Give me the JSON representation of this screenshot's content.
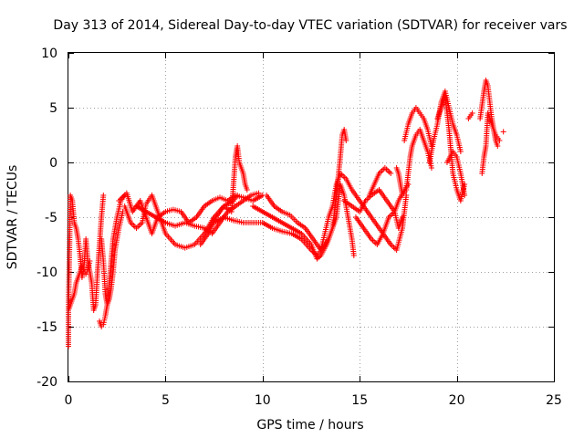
{
  "chart_data": {
    "type": "scatter",
    "title": "Day 313 of 2014, Sidereal Day-to-day VTEC variation (SDTVAR) for receiver vars",
    "xlabel": "GPS time / hours",
    "ylabel": "SDTVAR / TECUs",
    "xlim": [
      0,
      25
    ],
    "ylim": [
      -20,
      10
    ],
    "xticks": [
      0,
      5,
      10,
      15,
      20,
      25
    ],
    "yticks": [
      -20,
      -15,
      -10,
      -5,
      0,
      5,
      10
    ],
    "xtick_labels": [
      "0",
      "5",
      "10",
      "15",
      "20",
      "25"
    ],
    "ytick_labels": [
      "-20",
      "-15",
      "-10",
      "-5",
      "0",
      "5",
      "10"
    ],
    "grid": true,
    "marker": "+",
    "color": "#ff0000",
    "segments": [
      [
        [
          0.0,
          -16.8
        ],
        [
          0.0,
          -13.5
        ],
        [
          0.1,
          -3.0
        ],
        [
          0.2,
          -3.5
        ],
        [
          0.3,
          -5.5
        ],
        [
          0.4,
          -6.0
        ],
        [
          0.5,
          -7.0
        ],
        [
          0.6,
          -8.5
        ],
        [
          0.7,
          -10.5
        ],
        [
          0.8,
          -9.5
        ],
        [
          0.9,
          -7.0
        ],
        [
          1.0,
          -9.0
        ],
        [
          1.1,
          -10.0
        ],
        [
          1.2,
          -11.0
        ],
        [
          1.3,
          -13.5
        ],
        [
          1.4,
          -13.0
        ],
        [
          1.5,
          -10.0
        ],
        [
          1.6,
          -7.5
        ],
        [
          1.7,
          -5.0
        ],
        [
          1.8,
          -3.0
        ]
      ],
      [
        [
          0.0,
          -13.5
        ],
        [
          0.1,
          -13.0
        ],
        [
          0.2,
          -12.5
        ],
        [
          0.3,
          -12.0
        ],
        [
          0.4,
          -11.0
        ],
        [
          0.5,
          -10.5
        ],
        [
          0.6,
          -10.0
        ],
        [
          0.7,
          -9.5
        ],
        [
          0.8,
          -9.8
        ],
        [
          0.9,
          -10.2
        ],
        [
          1.0,
          -9.8
        ],
        [
          1.1,
          -9.0
        ]
      ],
      [
        [
          1.6,
          -14.5
        ],
        [
          1.7,
          -15.0
        ],
        [
          1.8,
          -14.8
        ],
        [
          1.9,
          -14.0
        ],
        [
          2.0,
          -13.0
        ],
        [
          2.1,
          -11.0
        ],
        [
          2.2,
          -9.0
        ],
        [
          2.3,
          -7.0
        ],
        [
          2.5,
          -5.0
        ],
        [
          2.7,
          -3.5
        ],
        [
          2.9,
          -3.0
        ]
      ],
      [
        [
          1.7,
          -7.0
        ],
        [
          1.8,
          -9.0
        ],
        [
          1.9,
          -12.0
        ],
        [
          2.0,
          -13.0
        ],
        [
          2.1,
          -12.5
        ],
        [
          2.2,
          -11.5
        ],
        [
          2.3,
          -10.0
        ],
        [
          2.4,
          -8.0
        ],
        [
          2.6,
          -6.0
        ],
        [
          2.8,
          -4.5
        ]
      ],
      [
        [
          2.9,
          -4.0
        ],
        [
          3.2,
          -5.5
        ],
        [
          3.5,
          -6.0
        ],
        [
          3.8,
          -5.5
        ],
        [
          4.0,
          -3.8
        ],
        [
          4.3,
          -3.0
        ],
        [
          4.6,
          -4.5
        ],
        [
          5.0,
          -6.5
        ],
        [
          5.5,
          -7.5
        ],
        [
          6.0,
          -7.8
        ],
        [
          6.5,
          -7.5
        ],
        [
          7.0,
          -6.5
        ],
        [
          7.5,
          -5.0
        ],
        [
          8.0,
          -4.0
        ],
        [
          8.5,
          -3.5
        ],
        [
          8.7,
          -3.0
        ]
      ],
      [
        [
          2.6,
          -3.5
        ],
        [
          3.0,
          -2.8
        ],
        [
          3.3,
          -4.5
        ],
        [
          3.7,
          -3.5
        ],
        [
          4.0,
          -5.0
        ],
        [
          4.3,
          -6.5
        ],
        [
          4.6,
          -5.0
        ],
        [
          5.0,
          -4.5
        ],
        [
          5.4,
          -4.3
        ],
        [
          5.8,
          -4.5
        ],
        [
          6.2,
          -5.5
        ],
        [
          6.6,
          -5.0
        ],
        [
          7.0,
          -4.0
        ],
        [
          7.4,
          -3.5
        ],
        [
          7.8,
          -3.2
        ],
        [
          8.2,
          -3.5
        ],
        [
          8.6,
          -3.0
        ],
        [
          9.0,
          -3.2
        ],
        [
          9.5,
          -3.5
        ],
        [
          10.0,
          -3.0
        ]
      ],
      [
        [
          3.5,
          -4.0
        ],
        [
          4.0,
          -4.5
        ],
        [
          4.5,
          -5.0
        ],
        [
          5.0,
          -5.5
        ],
        [
          5.5,
          -5.8
        ],
        [
          6.0,
          -5.5
        ],
        [
          6.5,
          -5.8
        ],
        [
          7.0,
          -6.0
        ],
        [
          7.4,
          -6.5
        ],
        [
          7.8,
          -5.5
        ],
        [
          8.2,
          -4.5
        ],
        [
          8.6,
          -4.0
        ],
        [
          9.0,
          -3.5
        ],
        [
          9.4,
          -3.0
        ],
        [
          9.8,
          -2.8
        ]
      ],
      [
        [
          6.8,
          -7.5
        ],
        [
          7.2,
          -6.5
        ],
        [
          7.6,
          -5.0
        ],
        [
          8.0,
          -4.0
        ],
        [
          8.4,
          -4.5
        ],
        [
          8.6,
          0.5
        ],
        [
          8.7,
          1.5
        ],
        [
          8.8,
          0.0
        ],
        [
          8.9,
          -0.5
        ],
        [
          9.0,
          -1.0
        ],
        [
          9.1,
          -2.0
        ],
        [
          9.2,
          -2.5
        ]
      ],
      [
        [
          7.5,
          -5.5
        ],
        [
          8.0,
          -5.0
        ],
        [
          8.5,
          -5.3
        ],
        [
          9.0,
          -5.5
        ],
        [
          9.5,
          -5.5
        ],
        [
          10.0,
          -5.5
        ],
        [
          10.5,
          -6.0
        ],
        [
          11.0,
          -6.3
        ],
        [
          11.5,
          -6.5
        ],
        [
          12.0,
          -7.0
        ],
        [
          12.5,
          -8.0
        ],
        [
          12.8,
          -8.5
        ],
        [
          13.0,
          -8.0
        ],
        [
          13.2,
          -6.5
        ],
        [
          13.4,
          -5.0
        ],
        [
          13.6,
          -4.0
        ]
      ],
      [
        [
          9.5,
          -4.0
        ],
        [
          10.0,
          -4.5
        ],
        [
          10.5,
          -5.0
        ],
        [
          11.0,
          -5.5
        ],
        [
          11.5,
          -6.0
        ],
        [
          12.0,
          -6.5
        ],
        [
          12.5,
          -7.5
        ],
        [
          12.8,
          -8.8
        ],
        [
          13.0,
          -8.5
        ],
        [
          13.3,
          -7.5
        ],
        [
          13.6,
          -6.0
        ],
        [
          13.8,
          -3.0
        ],
        [
          14.0,
          0.5
        ],
        [
          14.1,
          2.5
        ],
        [
          14.2,
          3.0
        ],
        [
          14.3,
          2.0
        ]
      ],
      [
        [
          10.2,
          -3.0
        ],
        [
          10.6,
          -4.0
        ],
        [
          11.0,
          -4.5
        ],
        [
          11.4,
          -4.8
        ],
        [
          11.8,
          -5.5
        ],
        [
          12.2,
          -6.0
        ],
        [
          12.6,
          -7.0
        ],
        [
          13.0,
          -8.0
        ],
        [
          13.4,
          -7.0
        ],
        [
          13.8,
          -5.0
        ],
        [
          14.0,
          -2.0
        ],
        [
          14.2,
          -3.0
        ],
        [
          14.4,
          -5.0
        ],
        [
          14.6,
          -7.0
        ],
        [
          14.7,
          -8.5
        ]
      ],
      [
        [
          13.6,
          -4.0
        ],
        [
          13.8,
          -2.0
        ],
        [
          14.0,
          -1.0
        ],
        [
          14.3,
          -1.5
        ],
        [
          14.6,
          -2.5
        ],
        [
          15.0,
          -3.5
        ],
        [
          15.4,
          -4.5
        ],
        [
          15.8,
          -5.5
        ],
        [
          16.2,
          -6.5
        ],
        [
          16.6,
          -7.5
        ],
        [
          16.9,
          -8.0
        ],
        [
          17.2,
          -6.0
        ],
        [
          17.4,
          -3.0
        ]
      ],
      [
        [
          14.2,
          -3.5
        ],
        [
          14.6,
          -4.0
        ],
        [
          15.0,
          -4.5
        ],
        [
          15.3,
          -3.5
        ],
        [
          15.6,
          -3.0
        ],
        [
          16.0,
          -2.5
        ],
        [
          16.4,
          -3.5
        ],
        [
          16.8,
          -4.5
        ],
        [
          17.0,
          -3.5
        ],
        [
          17.3,
          -2.5
        ],
        [
          17.5,
          -2.0
        ]
      ],
      [
        [
          14.8,
          -5.0
        ],
        [
          15.2,
          -6.0
        ],
        [
          15.6,
          -7.0
        ],
        [
          15.9,
          -7.5
        ],
        [
          16.2,
          -6.5
        ],
        [
          16.5,
          -5.0
        ],
        [
          16.8,
          -4.5
        ],
        [
          17.0,
          -6.0
        ],
        [
          17.2,
          -5.0
        ]
      ],
      [
        [
          15.5,
          -3.0
        ],
        [
          16.0,
          -1.0
        ],
        [
          16.3,
          -0.5
        ],
        [
          16.6,
          -1.0
        ]
      ],
      [
        [
          16.9,
          -0.5
        ],
        [
          17.0,
          -1.0
        ],
        [
          17.1,
          -2.0
        ],
        [
          17.2,
          -3.0
        ],
        [
          17.4,
          -2.5
        ],
        [
          17.5,
          -1.0
        ],
        [
          17.6,
          0.5
        ],
        [
          17.7,
          1.5
        ],
        [
          17.9,
          2.5
        ],
        [
          18.1,
          3.0
        ],
        [
          18.3,
          2.0
        ],
        [
          18.5,
          1.0
        ],
        [
          18.7,
          -0.5
        ]
      ],
      [
        [
          17.3,
          2.0
        ],
        [
          17.5,
          3.5
        ],
        [
          17.7,
          4.5
        ],
        [
          17.9,
          5.0
        ],
        [
          18.1,
          4.5
        ],
        [
          18.3,
          4.0
        ],
        [
          18.5,
          3.0
        ],
        [
          18.7,
          1.5
        ]
      ],
      [
        [
          18.6,
          0.0
        ],
        [
          18.8,
          2.0
        ],
        [
          19.0,
          3.5
        ],
        [
          19.2,
          5.5
        ],
        [
          19.4,
          6.5
        ],
        [
          19.6,
          5.0
        ],
        [
          19.8,
          3.5
        ],
        [
          20.0,
          2.5
        ],
        [
          20.2,
          1.0
        ]
      ],
      [
        [
          19.0,
          4.0
        ],
        [
          19.2,
          5.0
        ],
        [
          19.4,
          6.0
        ],
        [
          19.6,
          3.0
        ],
        [
          19.8,
          -1.0
        ],
        [
          20.0,
          -2.5
        ],
        [
          20.2,
          -3.5
        ],
        [
          20.4,
          -2.0
        ]
      ],
      [
        [
          19.5,
          0.0
        ],
        [
          19.8,
          1.0
        ],
        [
          20.0,
          0.5
        ],
        [
          20.2,
          -1.0
        ],
        [
          20.4,
          -3.0
        ]
      ],
      [
        [
          20.6,
          4.0
        ],
        [
          20.8,
          4.5
        ]
      ],
      [
        [
          21.2,
          4.0
        ],
        [
          21.4,
          6.5
        ],
        [
          21.5,
          7.5
        ],
        [
          21.6,
          7.0
        ],
        [
          21.7,
          5.5
        ],
        [
          21.8,
          4.0
        ],
        [
          21.9,
          3.0
        ],
        [
          22.0,
          2.0
        ],
        [
          22.1,
          1.5
        ]
      ],
      [
        [
          21.3,
          -1.0
        ],
        [
          21.4,
          0.5
        ],
        [
          21.5,
          1.5
        ],
        [
          21.6,
          4.5
        ],
        [
          21.8,
          3.5
        ],
        [
          22.0,
          2.5
        ],
        [
          22.2,
          2.0
        ]
      ],
      [
        [
          22.4,
          2.8
        ]
      ]
    ]
  }
}
